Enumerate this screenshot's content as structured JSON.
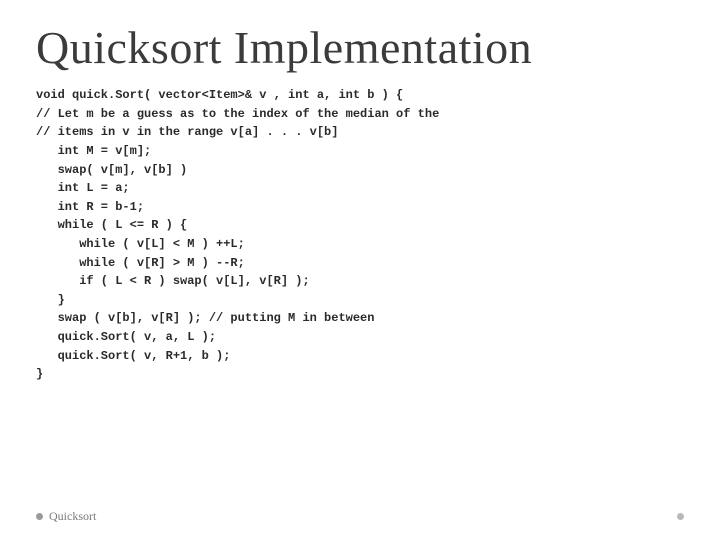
{
  "title": "Quicksort Implementation",
  "code_lines": [
    "void quick.Sort( vector<Item>& v , int a, int b ) {",
    "// Let m be a guess as to the index of the median of the",
    "// items in v in the range v[a] . . . v[b]",
    "   int M = v[m];",
    "   swap( v[m], v[b] )",
    "   int L = a;",
    "   int R = b-1;",
    "   while ( L <= R ) {",
    "      while ( v[L] < M ) ++L;",
    "      while ( v[R] > M ) --R;",
    "      if ( L < R ) swap( v[L], v[R] );",
    "   }",
    "   swap ( v[b], v[R] ); // putting M in between",
    "   quick.Sort( v, a, L );",
    "   quick.Sort( v, R+1, b );",
    "}"
  ],
  "footer_label": "Quicksort",
  "colors": {
    "title": "#3b3b3b",
    "code": "#2a2a2a",
    "footer": "#7a7a7a",
    "bullet_left": "#9a9a9a",
    "bullet_right": "#b8b8b8",
    "background": "#ffffff"
  },
  "typography": {
    "title_fontsize": 46,
    "code_fontsize": 12,
    "footer_fontsize": 12
  }
}
